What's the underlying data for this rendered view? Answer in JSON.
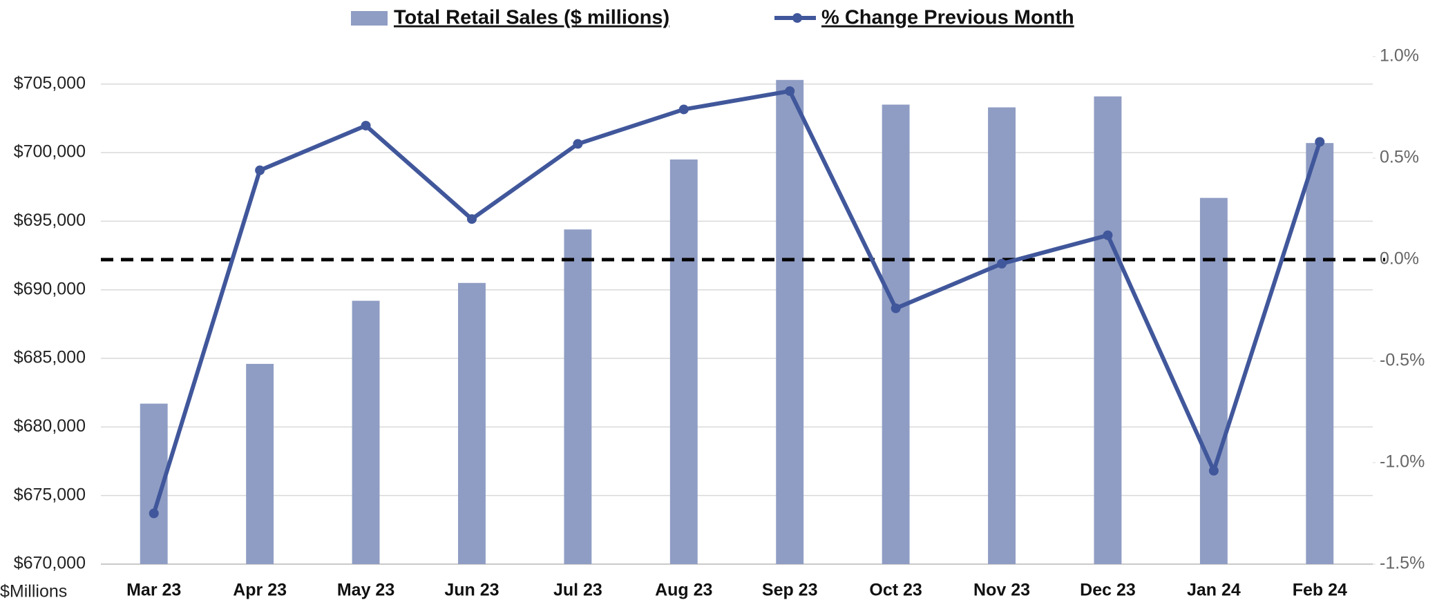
{
  "chart_data": {
    "type": "bar_line",
    "categories": [
      "Mar 23",
      "Apr 23",
      "May 23",
      "Jun 23",
      "Jul 23",
      "Aug 23",
      "Sep 23",
      "Oct 23",
      "Nov 23",
      "Dec 23",
      "Jan 24",
      "Feb 24"
    ],
    "series": [
      {
        "name": "Total Retail Sales ($ millions)",
        "type": "bar",
        "color": "#8f9dc4",
        "values": [
          681700,
          684600,
          689200,
          690500,
          694400,
          699500,
          705300,
          703500,
          703300,
          704100,
          696700,
          700700
        ]
      },
      {
        "name": "% Change Previous Month",
        "type": "line",
        "axis": "y2",
        "color": "#41579b",
        "values": [
          -1.25,
          0.44,
          0.66,
          0.2,
          0.57,
          0.74,
          0.83,
          -0.24,
          -0.02,
          0.12,
          -1.04,
          0.58
        ]
      }
    ],
    "y_label": "$Millions",
    "ylim": [
      670000,
      707000
    ],
    "yticks": [
      {
        "value": 670000,
        "label": "$670,000"
      },
      {
        "value": 675000,
        "label": "$675,000"
      },
      {
        "value": 680000,
        "label": "$680,000"
      },
      {
        "value": 685000,
        "label": "$685,000"
      },
      {
        "value": 690000,
        "label": "$690,000"
      },
      {
        "value": 695000,
        "label": "$695,000"
      },
      {
        "value": 700000,
        "label": "$700,000"
      },
      {
        "value": 705000,
        "label": "$705,000"
      }
    ],
    "y2lim": [
      -1.5,
      1.0
    ],
    "y2ticks": [
      {
        "value": -1.5,
        "label": "-1.5%"
      },
      {
        "value": -1.0,
        "label": "-1.0%"
      },
      {
        "value": -0.5,
        "label": "-0.5%"
      },
      {
        "value": 0,
        "label": "0.0%"
      },
      {
        "value": 0.5,
        "label": "0.5%"
      },
      {
        "value": 1.0,
        "label": "1.0%"
      }
    ],
    "reference_line": {
      "value": 0,
      "axis": "y2",
      "color": "#000000"
    },
    "grid": true,
    "legend": "top"
  }
}
